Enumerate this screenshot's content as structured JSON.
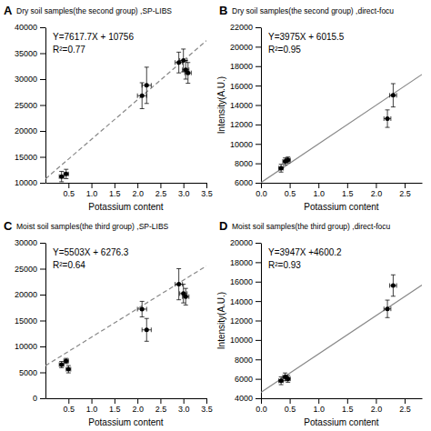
{
  "chart_data": [
    {
      "type": "scatter",
      "title": "Dry soil samples(the second group) ,SP-LIBS",
      "panel_label": "A",
      "annotations": [
        "Y=7617.7X + 10756",
        "R²=0.77"
      ],
      "xlabel": "Potassium content",
      "xlim": [
        0,
        3.5
      ],
      "xticks": [
        0.5,
        {
          "value": 1,
          "label": "1.0"
        },
        1.5,
        {
          "value": 2,
          "label": "2.0"
        },
        2.5,
        {
          "value": 3,
          "label": "3.0"
        },
        3.5
      ],
      "ylim": [
        10000,
        40000
      ],
      "yticks": [
        10000,
        15000,
        20000,
        25000,
        30000,
        35000,
        40000
      ],
      "series": [
        {
          "type": "line",
          "color": "#888888",
          "line_style": "dashed",
          "x": [
            0,
            3.5
          ],
          "values": [
            10756,
            37417.95
          ]
        },
        {
          "type": "scatter",
          "color": "black",
          "marker": "circle",
          "x": [
            0.35,
            0.45,
            2.1,
            2.2,
            2.9,
            3.0,
            3.05,
            3.1
          ],
          "values": [
            11200,
            11700,
            26800,
            28800,
            33200,
            33600,
            31800,
            31200
          ],
          "xerr": [
            0.05,
            0.05,
            0.1,
            0.1,
            0.08,
            0.08,
            0.07,
            0.07
          ],
          "yerr": [
            1000,
            900,
            2500,
            3500,
            2000,
            2200,
            1800,
            2000
          ]
        }
      ]
    },
    {
      "type": "scatter",
      "title": "Dry soil samples(the second group) ,direct-focu",
      "panel_label": "B",
      "annotations": [
        "Y=3975X + 6015.5",
        "R²=0.95"
      ],
      "xlabel": "Potassium content",
      "ylabel": "Intensity(A.U.)",
      "xlim": [
        0.0,
        2.8
      ],
      "xticks": [
        {
          "value": 0,
          "label": "0.0"
        },
        0.5,
        {
          "value": 1,
          "label": "1.0"
        },
        1.5,
        {
          "value": 2,
          "label": "2.0"
        },
        2.5
      ],
      "ylim": [
        6000,
        22000
      ],
      "yticks": [
        6000,
        8000,
        10000,
        12000,
        14000,
        16000,
        18000,
        20000,
        22000
      ],
      "series": [
        {
          "type": "line",
          "color": "#888888",
          "line_style": "solid",
          "x": [
            0.0,
            2.8
          ],
          "values": [
            6015.5,
            17145.5
          ]
        },
        {
          "type": "scatter",
          "color": "black",
          "marker": "circle",
          "x": [
            0.35,
            0.42,
            0.47,
            2.2,
            2.3
          ],
          "values": [
            7500,
            8200,
            8350,
            12600,
            15000
          ],
          "xerr": [
            0.04,
            0.04,
            0.04,
            0.06,
            0.06
          ],
          "yerr": [
            400,
            350,
            300,
            900,
            1200
          ]
        }
      ]
    },
    {
      "type": "scatter",
      "title": "Moist soil samples(the third group) ,SP-LIBS",
      "panel_label": "C",
      "annotations": [
        "Y=5503X + 6276.3",
        "R²=0.64"
      ],
      "xlabel": "Potassium content",
      "xlim": [
        0,
        3.5
      ],
      "xticks": [
        0.5,
        {
          "value": 1,
          "label": "1.0"
        },
        1.5,
        {
          "value": 2,
          "label": "2.0"
        },
        2.5,
        {
          "value": 3,
          "label": "3.0"
        },
        3.5
      ],
      "ylim": [
        0,
        30000
      ],
      "yticks": [
        0,
        5000,
        10000,
        15000,
        20000,
        25000,
        30000
      ],
      "series": [
        {
          "type": "line",
          "color": "#888888",
          "line_style": "dashed",
          "x": [
            0,
            3.5
          ],
          "values": [
            6276.3,
            25536.8
          ]
        },
        {
          "type": "scatter",
          "color": "black",
          "marker": "circle",
          "x": [
            0.35,
            0.45,
            0.5,
            2.1,
            2.2,
            2.9,
            3.0,
            3.05
          ],
          "values": [
            6500,
            7200,
            5600,
            17200,
            13200,
            22000,
            20200,
            19600
          ],
          "xerr": [
            0.05,
            0.05,
            0.05,
            0.1,
            0.1,
            0.08,
            0.08,
            0.07
          ],
          "yerr": [
            600,
            500,
            700,
            1500,
            2200,
            3000,
            1800,
            1600
          ]
        }
      ]
    },
    {
      "type": "scatter",
      "title": "Moist soil samples(the third group) ,direct-focu",
      "panel_label": "D",
      "annotations": [
        "Y=3947X +4600.2",
        "R²=0.93"
      ],
      "xlabel": "Potassium content",
      "ylabel": "Intensity(A.U.)",
      "xlim": [
        0.0,
        2.8
      ],
      "xticks": [
        {
          "value": 0,
          "label": "0.0"
        },
        0.5,
        {
          "value": 1,
          "label": "1.0"
        },
        1.5,
        {
          "value": 2,
          "label": "2.0"
        },
        2.5
      ],
      "ylim": [
        4000,
        20000
      ],
      "yticks": [
        4000,
        6000,
        8000,
        10000,
        12000,
        14000,
        16000,
        18000,
        20000
      ],
      "series": [
        {
          "type": "line",
          "color": "#888888",
          "line_style": "solid",
          "x": [
            0.0,
            2.8
          ],
          "values": [
            4600.2,
            15651.8
          ]
        },
        {
          "type": "scatter",
          "color": "black",
          "marker": "circle",
          "x": [
            0.35,
            0.42,
            0.47,
            2.2,
            2.3
          ],
          "values": [
            5800,
            6200,
            6000,
            13200,
            15600
          ],
          "xerr": [
            0.04,
            0.04,
            0.04,
            0.06,
            0.06
          ],
          "yerr": [
            400,
            400,
            350,
            900,
            1100
          ]
        }
      ]
    }
  ]
}
